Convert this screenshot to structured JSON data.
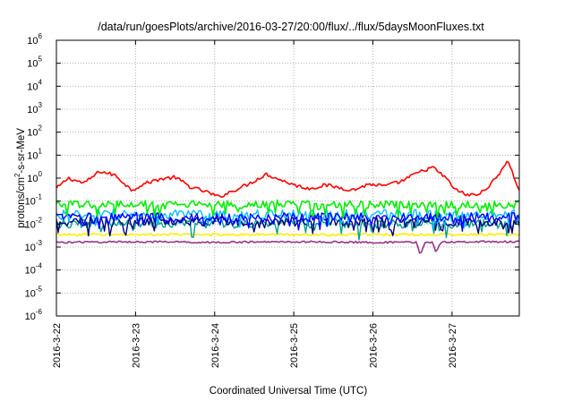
{
  "chart_data": {
    "type": "line",
    "title": "/data/run/goesPlots/archive/2016-03-27/20:00/flux/../flux/5daysMoonFluxes.txt",
    "xlabel": "Coordinated Universal Time (UTC)",
    "ylabel_parts": [
      "protons/cm",
      "2",
      "-s-sr-MeV"
    ],
    "y_scale": "log",
    "ylim": [
      1e-06,
      1000000.0
    ],
    "y_ticks": [
      {
        "base": "10",
        "exp": "-6",
        "value": 1e-06
      },
      {
        "base": "10",
        "exp": "-5",
        "value": 1e-05
      },
      {
        "base": "10",
        "exp": "-4",
        "value": 0.0001
      },
      {
        "base": "10",
        "exp": "-3",
        "value": 0.001
      },
      {
        "base": "10",
        "exp": "-2",
        "value": 0.01
      },
      {
        "base": "10",
        "exp": "-1",
        "value": 0.1
      },
      {
        "base": "10",
        "exp": "0",
        "value": 1
      },
      {
        "base": "10",
        "exp": "1",
        "value": 10
      },
      {
        "base": "10",
        "exp": "2",
        "value": 100
      },
      {
        "base": "10",
        "exp": "3",
        "value": 1000
      },
      {
        "base": "10",
        "exp": "4",
        "value": 10000
      },
      {
        "base": "10",
        "exp": "5",
        "value": 100000
      },
      {
        "base": "10",
        "exp": "6",
        "value": 1000000
      }
    ],
    "x_ticks": [
      "2016-3-22",
      "2016-3-23",
      "2016-3-24",
      "2016-3-25",
      "2016-3-26",
      "2016-3-27"
    ],
    "xlim_days": [
      0,
      5.85
    ],
    "grid": true,
    "legend": "none",
    "series": [
      {
        "color": "#ff0000",
        "x": [
          0,
          0.15,
          0.35,
          0.55,
          0.75,
          0.95,
          1.1,
          1.3,
          1.5,
          1.7,
          1.9,
          2.05,
          2.25,
          2.45,
          2.65,
          2.85,
          3.05,
          3.2,
          3.4,
          3.55,
          3.75,
          3.95,
          4.15,
          4.35,
          4.55,
          4.75,
          4.9,
          5.05,
          5.2,
          5.35,
          5.55,
          5.7,
          5.85
        ],
        "y": [
          0.35,
          1.0,
          0.6,
          2.0,
          1.3,
          0.3,
          0.55,
          0.9,
          1.1,
          0.4,
          0.25,
          0.15,
          0.3,
          0.6,
          1.5,
          0.8,
          0.45,
          0.35,
          0.5,
          0.4,
          0.3,
          0.55,
          0.45,
          0.7,
          1.6,
          3.0,
          1.2,
          0.3,
          0.18,
          0.2,
          0.9,
          6.0,
          0.3
        ]
      },
      {
        "color": "#00ee00",
        "x": [
          0,
          1,
          2,
          3,
          4,
          5,
          5.85
        ],
        "y": [
          0.07,
          0.075,
          0.07,
          0.08,
          0.07,
          0.07,
          0.07
        ]
      },
      {
        "color": "#00c0ff",
        "x": [
          0,
          1,
          2,
          3,
          4,
          5,
          5.85
        ],
        "y": [
          0.026,
          0.028,
          0.025,
          0.027,
          0.026,
          0.025,
          0.026
        ]
      },
      {
        "color": "#0000ff",
        "x": [
          0,
          1,
          2,
          3,
          4,
          5,
          5.85
        ],
        "y": [
          0.02,
          0.021,
          0.019,
          0.02,
          0.019,
          0.02,
          0.02
        ]
      },
      {
        "color": "#000080",
        "x": [
          0,
          1,
          2,
          3,
          4,
          5,
          5.85
        ],
        "y": [
          0.013,
          0.014,
          0.013,
          0.014,
          0.013,
          0.013,
          0.013
        ]
      },
      {
        "color": "#00a090",
        "x": [
          0,
          1,
          2,
          3,
          4,
          5,
          5.85
        ],
        "y": [
          0.01,
          0.011,
          0.01,
          0.011,
          0.01,
          0.01,
          0.01
        ]
      },
      {
        "color": "#ffee00",
        "x": [
          0,
          1,
          2,
          3,
          4,
          5,
          5.85
        ],
        "y": [
          0.0035,
          0.0035,
          0.0035,
          0.0035,
          0.0035,
          0.0035,
          0.0035
        ]
      },
      {
        "color": "#993388",
        "x": [
          0,
          1,
          2,
          3,
          4,
          4.55,
          4.6,
          4.65,
          4.75,
          4.8,
          4.85,
          5,
          5.85
        ],
        "y": [
          0.0016,
          0.0017,
          0.0016,
          0.0017,
          0.0016,
          0.0016,
          0.0004,
          0.0016,
          0.0016,
          0.0005,
          0.0016,
          0.0017,
          0.0017
        ]
      }
    ]
  }
}
